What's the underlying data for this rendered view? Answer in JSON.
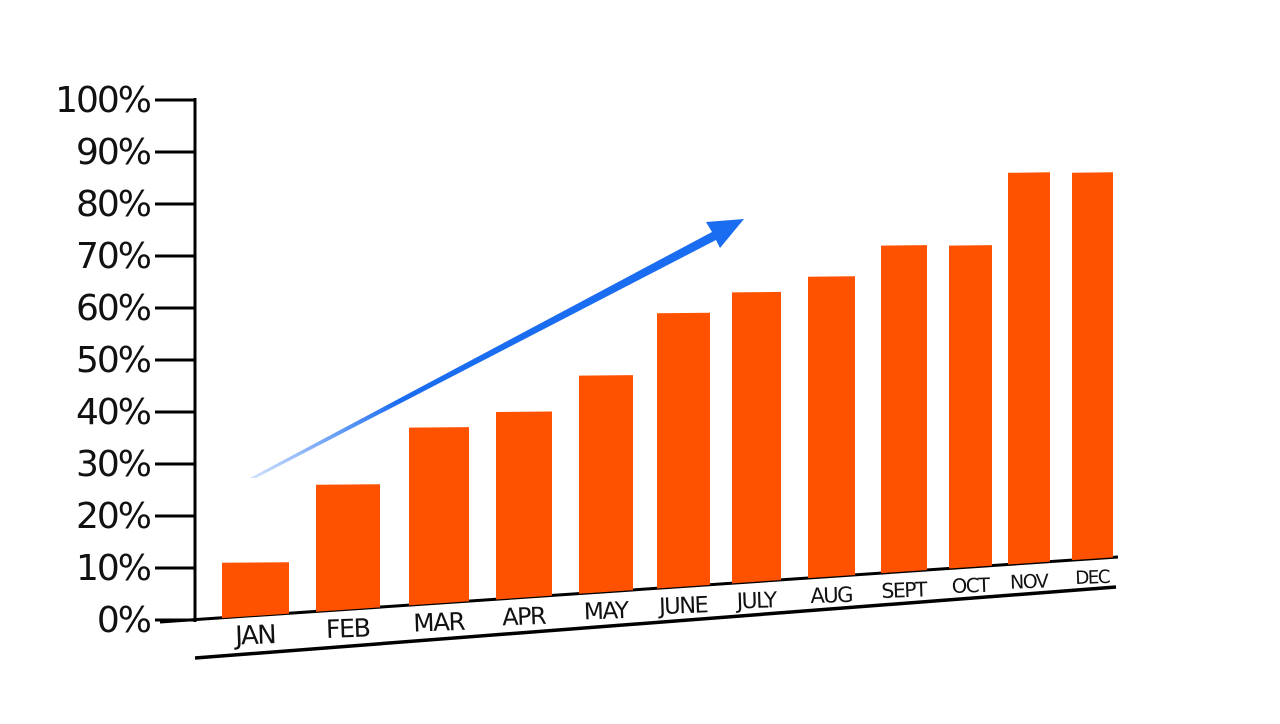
{
  "chart_data": {
    "type": "bar",
    "title": "",
    "xlabel": "",
    "ylabel": "",
    "categories": [
      "JAN",
      "FEB",
      "MAR",
      "APR",
      "MAY",
      "JUNE",
      "JULY",
      "AUG",
      "SEPT",
      "OCT",
      "NOV",
      "DEC"
    ],
    "values": [
      11,
      26,
      37,
      40,
      47,
      59,
      63,
      66,
      72,
      72,
      86,
      86
    ],
    "ylim": [
      0,
      100
    ],
    "yticks": [
      "0%",
      "10%",
      "20%",
      "30%",
      "40%",
      "50%",
      "60%",
      "70%",
      "80%",
      "90%",
      "100%"
    ],
    "grid": false,
    "legend": "none",
    "annotations": [
      {
        "type": "arrow",
        "direction": "upward trend"
      }
    ],
    "colors": {
      "bar": "#ff5200",
      "arrow": "#1a6cf0",
      "axis": "#000000"
    }
  }
}
